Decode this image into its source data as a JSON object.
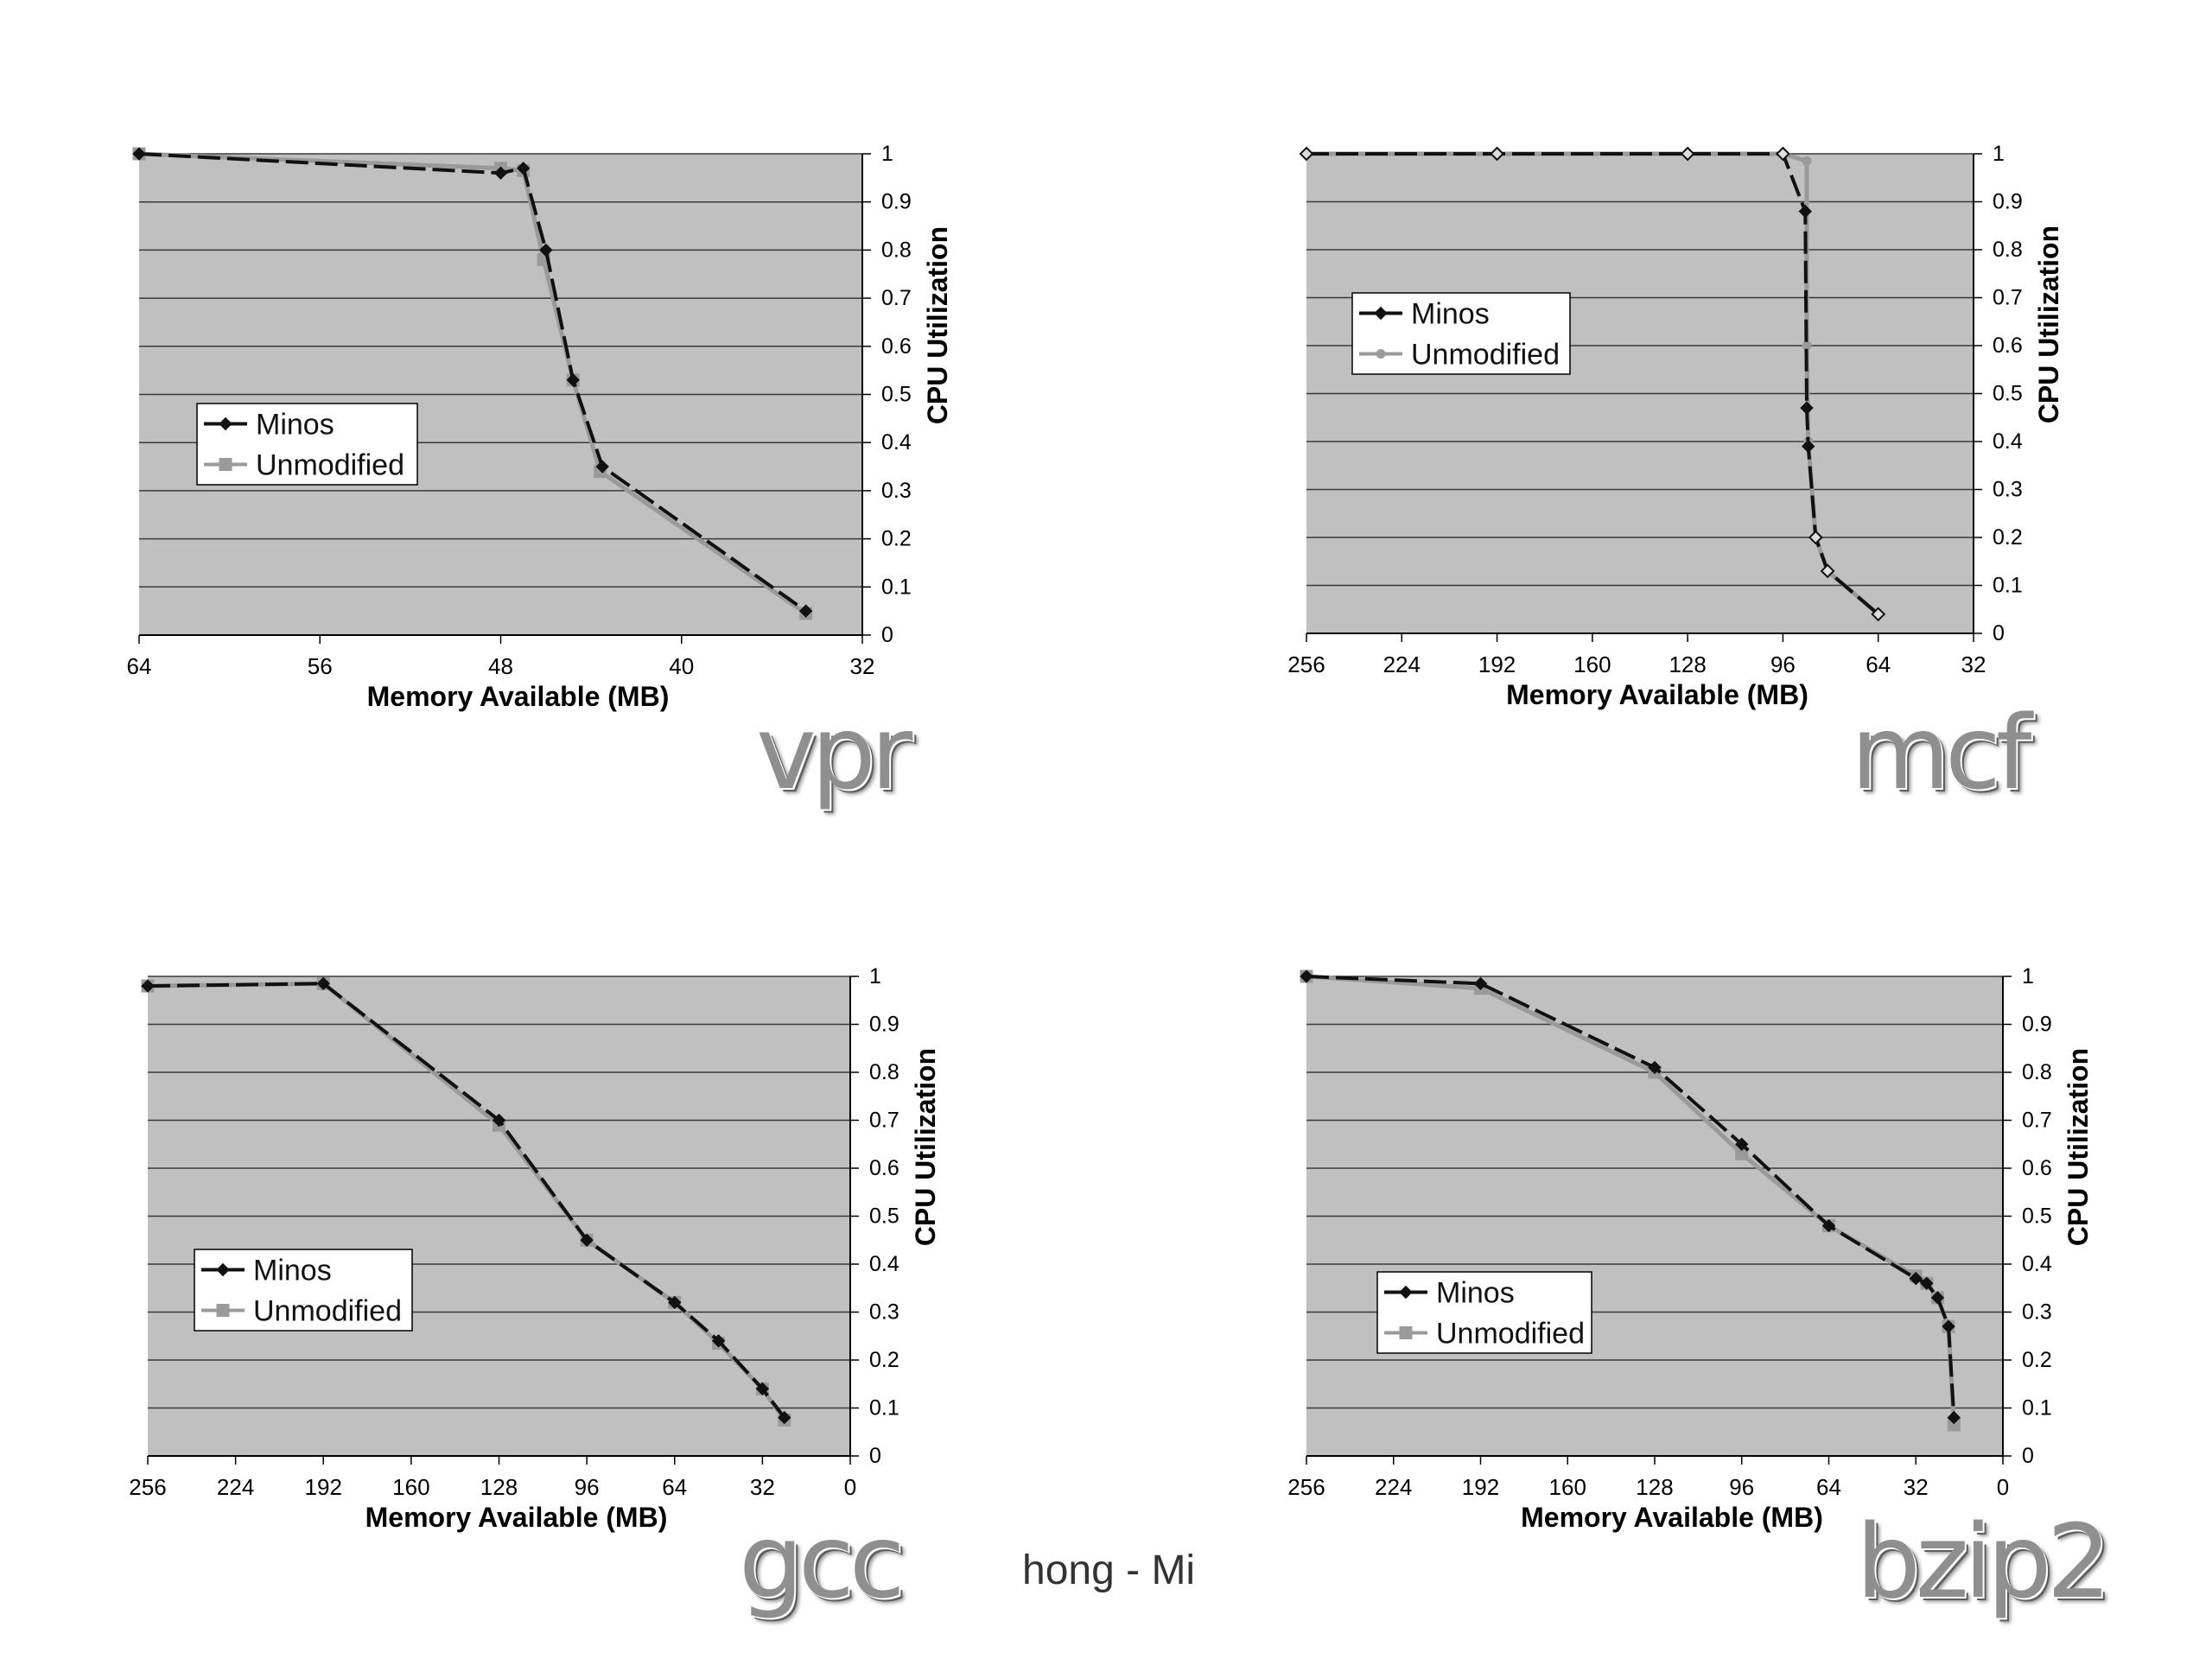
{
  "footer_text": "hong - Mi",
  "chart_data": [
    {
      "type": "line",
      "benchmark": "vpr",
      "xlabel": "Memory Available (MB)",
      "ylabel": "CPU Utilization",
      "xlim": [
        64,
        32
      ],
      "xticks": [
        64,
        56,
        48,
        40,
        32
      ],
      "ylim": [
        0,
        1
      ],
      "yticks": [
        0,
        0.1,
        0.2,
        0.3,
        0.4,
        0.5,
        0.6,
        0.7,
        0.8,
        0.9,
        1
      ],
      "ytick_labels": [
        "0",
        "0.1",
        "0.2",
        "0.3",
        "0.4",
        "0.5",
        "0.6",
        "0.7",
        "0.8",
        "0.9",
        "1"
      ],
      "grid": true,
      "legend_placement": "left",
      "series": [
        {
          "name": "Minos",
          "color": "#111111",
          "dashed": true,
          "marker": "diamond",
          "x": [
            64,
            48,
            47,
            46,
            44.8,
            43.5,
            34.5
          ],
          "y": [
            1.0,
            0.96,
            0.97,
            0.8,
            0.53,
            0.35,
            0.05
          ]
        },
        {
          "name": "Unmodified",
          "color": "#9a9a9a",
          "dashed": false,
          "marker": "square",
          "x": [
            64,
            48,
            47,
            46.1,
            44.8,
            43.6,
            34.5
          ],
          "y": [
            1.0,
            0.97,
            0.965,
            0.78,
            0.53,
            0.34,
            0.045
          ]
        }
      ]
    },
    {
      "type": "line",
      "benchmark": "mcf",
      "xlabel": "Memory Available (MB)",
      "ylabel": "CPU Utilization",
      "xlim": [
        256,
        32
      ],
      "xticks": [
        256,
        224,
        192,
        160,
        128,
        96,
        64,
        32
      ],
      "ylim": [
        0,
        1
      ],
      "yticks": [
        0,
        0.1,
        0.2,
        0.3,
        0.4,
        0.5,
        0.6,
        0.7,
        0.8,
        0.9,
        1
      ],
      "ytick_labels": [
        "0",
        "0.1",
        "0.2",
        "0.3",
        "0.4",
        "0.5",
        "0.6",
        "0.7",
        "0.8",
        "0.9",
        "1"
      ],
      "grid": true,
      "legend_placement": "top-left",
      "series": [
        {
          "name": "Minos",
          "color": "#111111",
          "dashed": true,
          "marker": "diamond",
          "x": [
            256,
            192,
            128,
            96,
            88.5,
            88,
            87.5,
            85,
            81,
            64
          ],
          "y": [
            1.0,
            1.0,
            1.0,
            1.0,
            0.88,
            0.47,
            0.39,
            0.2,
            0.13,
            0.04
          ]
        },
        {
          "name": "Unmodified",
          "color": "#9a9a9a",
          "dashed": false,
          "marker": "circle",
          "x": [
            256,
            192,
            128,
            96,
            88,
            88,
            87.5,
            85,
            81,
            64
          ],
          "y": [
            1.0,
            1.0,
            1.0,
            1.0,
            0.985,
            0.6,
            0.4,
            0.2,
            0.13,
            0.04
          ]
        }
      ]
    },
    {
      "type": "line",
      "benchmark": "gcc",
      "xlabel": "Memory Available (MB)",
      "ylabel": "CPU Utilization",
      "xlim": [
        256,
        0
      ],
      "xticks": [
        256,
        224,
        192,
        160,
        128,
        96,
        64,
        32,
        0
      ],
      "ylim": [
        0,
        1
      ],
      "yticks": [
        0,
        0.1,
        0.2,
        0.3,
        0.4,
        0.5,
        0.6,
        0.7,
        0.8,
        0.9,
        1
      ],
      "ytick_labels": [
        "0",
        "0.1",
        "0.2",
        "0.3",
        "0.4",
        "0.5",
        "0.6",
        "0.7",
        "0.8",
        "0.9",
        "1"
      ],
      "grid": true,
      "legend_placement": "left",
      "series": [
        {
          "name": "Minos",
          "color": "#111111",
          "dashed": true,
          "marker": "diamond",
          "x": [
            256,
            192,
            128,
            96,
            64,
            48,
            32,
            24
          ],
          "y": [
            0.98,
            0.985,
            0.7,
            0.45,
            0.32,
            0.24,
            0.14,
            0.08
          ]
        },
        {
          "name": "Unmodified",
          "color": "#9a9a9a",
          "dashed": false,
          "marker": "square",
          "x": [
            256,
            192,
            128,
            96,
            64,
            48,
            32,
            24
          ],
          "y": [
            0.98,
            0.985,
            0.69,
            0.45,
            0.32,
            0.235,
            0.14,
            0.075
          ]
        }
      ]
    },
    {
      "type": "line",
      "benchmark": "bzip2",
      "xlabel": "Memory Available (MB)",
      "ylabel": "CPU Utilization",
      "xlim": [
        256,
        0
      ],
      "xticks": [
        256,
        224,
        192,
        160,
        128,
        96,
        64,
        32,
        0
      ],
      "ylim": [
        0,
        1
      ],
      "yticks": [
        0,
        0.1,
        0.2,
        0.3,
        0.4,
        0.5,
        0.6,
        0.7,
        0.8,
        0.9,
        1
      ],
      "ytick_labels": [
        "0",
        "0.1",
        "0.2",
        "0.3",
        "0.4",
        "0.5",
        "0.6",
        "0.7",
        "0.8",
        "0.9",
        "1"
      ],
      "grid": true,
      "legend_placement": "bottom-left",
      "series": [
        {
          "name": "Minos",
          "color": "#111111",
          "dashed": true,
          "marker": "diamond",
          "x": [
            256,
            192,
            128,
            96,
            64,
            32,
            28,
            24,
            20,
            18
          ],
          "y": [
            1.0,
            0.985,
            0.81,
            0.65,
            0.48,
            0.37,
            0.36,
            0.33,
            0.27,
            0.08
          ]
        },
        {
          "name": "Unmodified",
          "color": "#9a9a9a",
          "dashed": false,
          "marker": "square",
          "x": [
            256,
            192,
            128,
            96,
            64,
            32,
            28,
            24,
            20,
            18
          ],
          "y": [
            1.0,
            0.975,
            0.8,
            0.63,
            0.48,
            0.375,
            0.36,
            0.33,
            0.27,
            0.065
          ]
        }
      ]
    }
  ]
}
